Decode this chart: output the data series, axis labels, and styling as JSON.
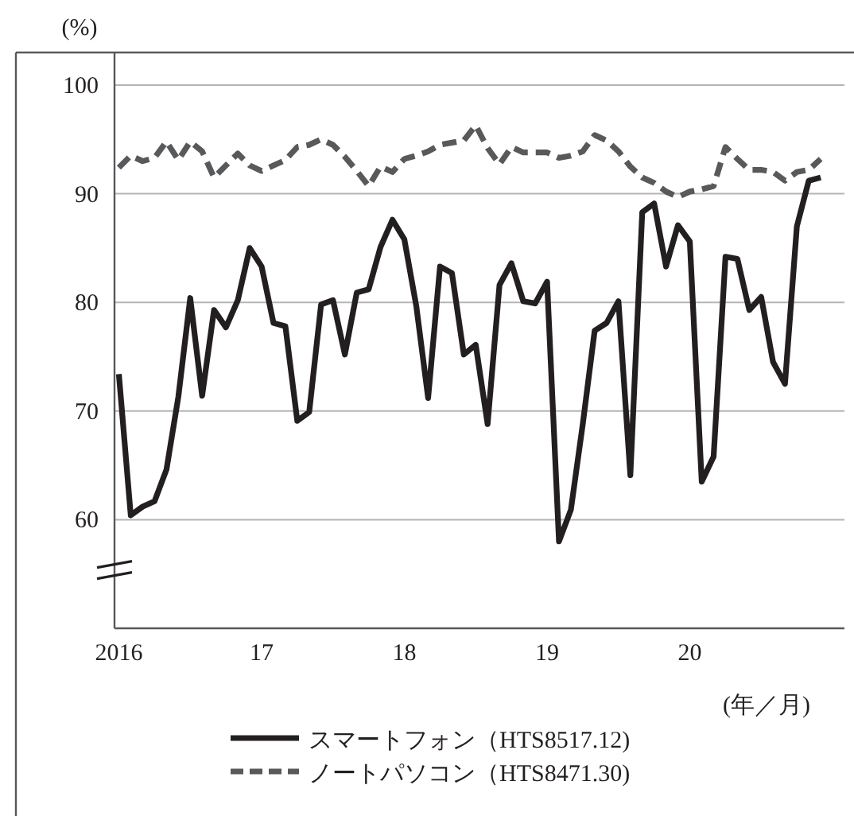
{
  "chart_data": {
    "type": "line",
    "ylabel": "(%)",
    "xlabel": "(年／月)",
    "x": [
      "2016-01",
      "2016-02",
      "2016-03",
      "2016-04",
      "2016-05",
      "2016-06",
      "2016-07",
      "2016-08",
      "2016-09",
      "2016-10",
      "2016-11",
      "2016-12",
      "2017-01",
      "2017-02",
      "2017-03",
      "2017-04",
      "2017-05",
      "2017-06",
      "2017-07",
      "2017-08",
      "2017-09",
      "2017-10",
      "2017-11",
      "2017-12",
      "2018-01",
      "2018-02",
      "2018-03",
      "2018-04",
      "2018-05",
      "2018-06",
      "2018-07",
      "2018-08",
      "2018-09",
      "2018-10",
      "2018-11",
      "2018-12",
      "2019-01",
      "2019-02",
      "2019-03",
      "2019-04",
      "2019-05",
      "2019-06",
      "2019-07",
      "2019-08",
      "2019-09",
      "2019-10",
      "2019-11",
      "2019-12",
      "2020-01",
      "2020-02",
      "2020-03",
      "2020-04",
      "2020-05",
      "2020-06",
      "2020-07",
      "2020-08",
      "2020-09",
      "2020-10",
      "2020-11",
      "2020-12"
    ],
    "series": [
      {
        "name": "スマートフォン（HTS8517.12)",
        "color": "#231f20",
        "line_style": "solid",
        "values": [
          73.4,
          60.4,
          61.2,
          61.7,
          64.6,
          71.3,
          80.4,
          71.4,
          79.3,
          77.7,
          80.2,
          85.0,
          83.3,
          78.1,
          77.8,
          69.1,
          69.9,
          79.8,
          80.2,
          75.2,
          80.9,
          81.2,
          85.1,
          87.6,
          85.8,
          79.7,
          71.2,
          83.3,
          82.7,
          75.2,
          76.1,
          68.8,
          81.6,
          83.6,
          80.1,
          79.9,
          81.9,
          58.0,
          60.9,
          68.8,
          77.4,
          78.1,
          80.1,
          64.1,
          88.3,
          89.1,
          83.3,
          87.1,
          85.6,
          63.5,
          65.8,
          84.2,
          84.0,
          79.3,
          80.5,
          74.5,
          72.5,
          87.0,
          91.2,
          91.5
        ]
      },
      {
        "name": "ノートパソコン（HTS8471.30)",
        "color": "#58595b",
        "line_style": "dashed",
        "values": [
          92.4,
          93.5,
          93.0,
          93.3,
          94.8,
          93.1,
          94.8,
          93.9,
          91.5,
          92.6,
          93.7,
          92.6,
          92.1,
          92.6,
          93.1,
          94.3,
          94.5,
          95.0,
          94.5,
          93.4,
          92.1,
          90.7,
          92.5,
          92.0,
          93.2,
          93.5,
          93.9,
          94.5,
          94.7,
          94.9,
          96.3,
          94.2,
          92.7,
          94.3,
          93.8,
          93.8,
          93.8,
          93.3,
          93.5,
          93.9,
          95.4,
          94.9,
          93.9,
          92.5,
          91.5,
          91.0,
          90.2,
          89.7,
          90.2,
          90.4,
          90.7,
          94.3,
          93.2,
          92.2,
          92.2,
          92.0,
          91.2,
          92.0,
          92.2,
          93.2
        ]
      }
    ],
    "xlim": [
      "2015-12-20",
      "2021-02-01"
    ],
    "xticks": [
      {
        "value": "2016-01",
        "label": "2016"
      },
      {
        "value": "2017-01",
        "label": "17"
      },
      {
        "value": "2018-01",
        "label": "18"
      },
      {
        "value": "2019-01",
        "label": "19"
      },
      {
        "value": "2020-01",
        "label": "20"
      }
    ],
    "ylim": [
      50,
      103
    ],
    "yticks": [
      60,
      70,
      80,
      90,
      100
    ],
    "grid": "y",
    "legend": "bottom"
  }
}
